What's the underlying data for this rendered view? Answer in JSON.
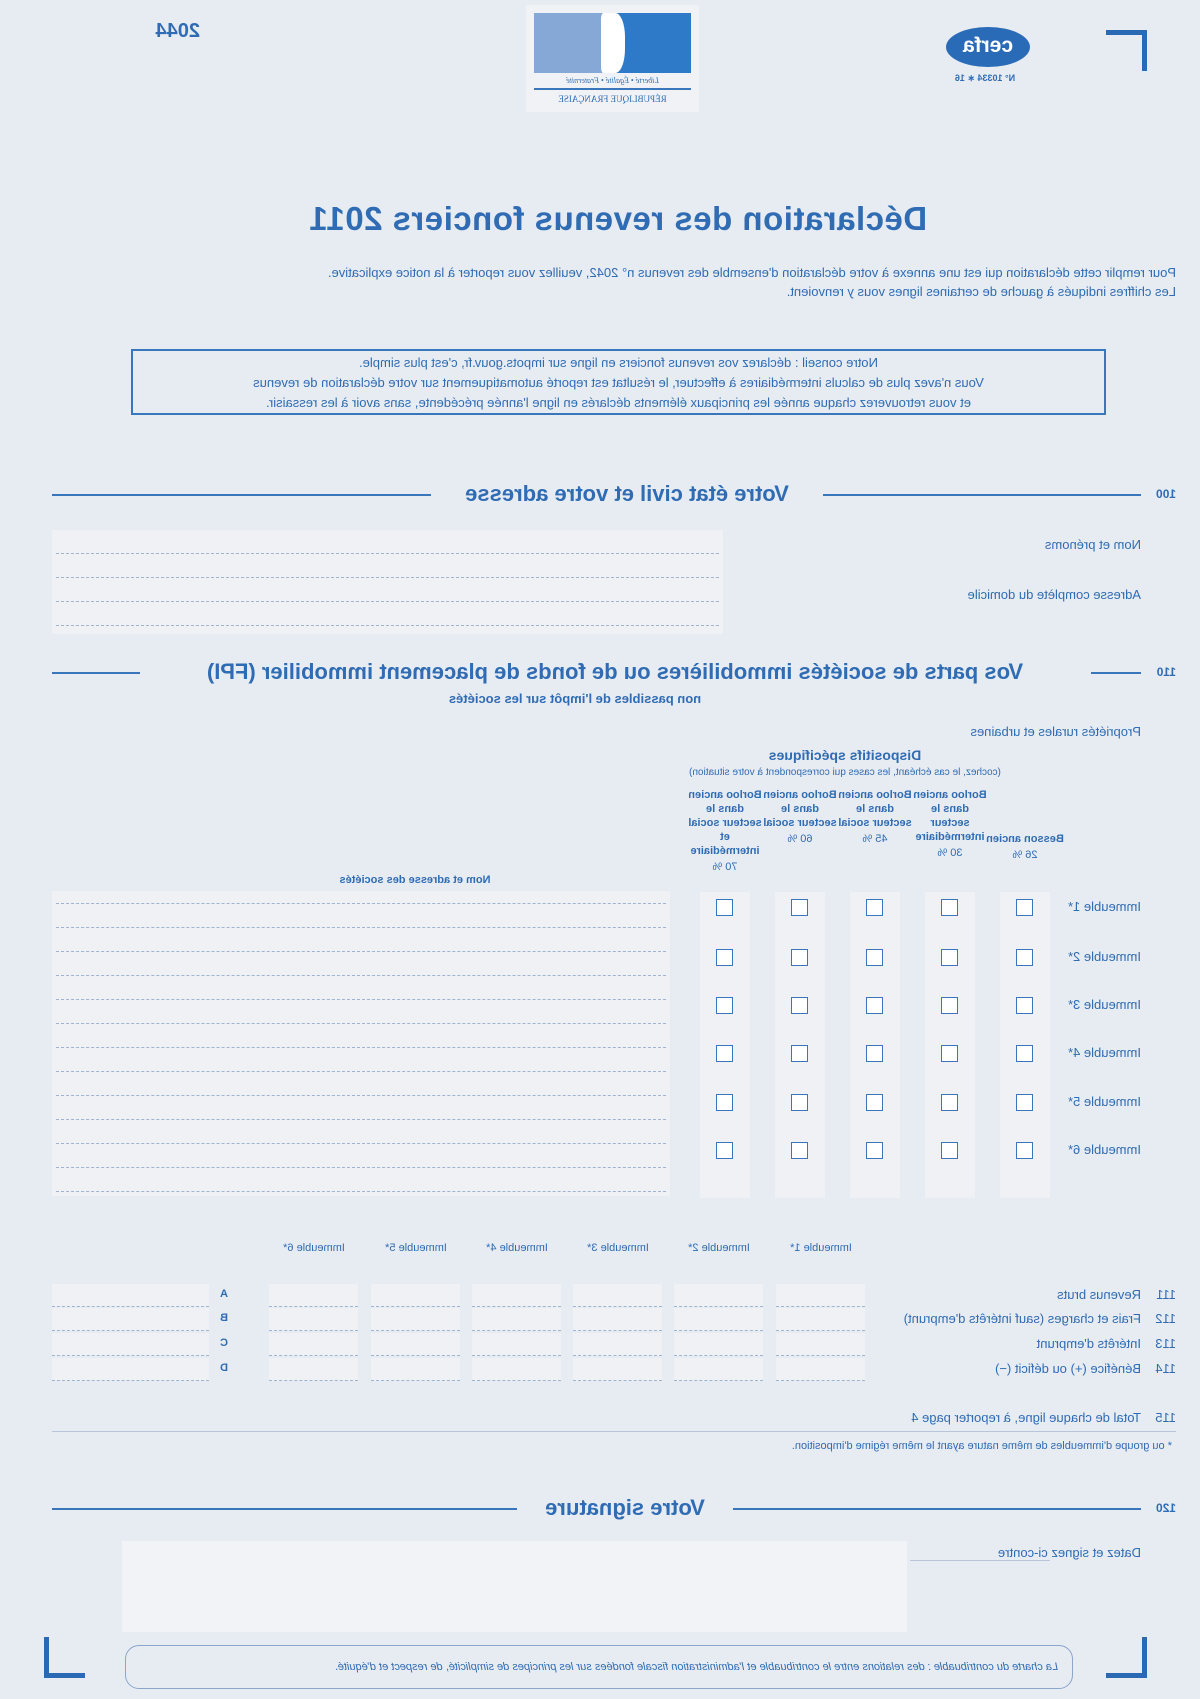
{
  "header": {
    "form_number": "2044",
    "logo_motto": "Liberté • Égalité • Fraternité",
    "logo_text": "RÉPUBLIQUE FRANÇAISE",
    "cerfa_logo": "cerfa",
    "cerfa_number": "N° 10334 ∗ 16"
  },
  "title": "Déclaration des revenus fonciers 2011",
  "intro": [
    "Pour remplir cette déclaration qui est une annexe à votre déclaration d'ensemble des revenus n° 2042, veuillez vous reporter à la notice explicative.",
    "Les chiffres indiqués à gauche de certaines lignes vous y renvoient."
  ],
  "advice": [
    "Notre conseil : déclarez vos revenus fonciers en ligne sur impots.gouv.fr, c'est plus simple.",
    "Vous n'avez plus de calculs intermédiaires à effectuer, le résultat est reporté automatiquement sur votre déclaration de revenus",
    "et vous retrouverez chaque année les principaux éléments déclarés en ligne l'année précédente, sans avoir à les ressaisir."
  ],
  "section_100": {
    "number": "100",
    "title": "Votre état civil et votre adresse",
    "labels": [
      "Nom et prénoms",
      "Adresse complète du domicile"
    ]
  },
  "section_110": {
    "number": "110",
    "title": "Vos parts de sociétés immobilières ou de fonds de placement immobilier (FPI)",
    "subtitle": "non passibles de l'impôt sur les sociétés",
    "properties_label": "Propriétés rurales et urbaines",
    "dispositifs_title": "Dispositifs spécifiques",
    "dispositifs_note": "(cochez, le cas échéant, les cases qui correspondent à votre situation)",
    "columns": [
      {
        "label": "Besson ancien",
        "rate": "26 %"
      },
      {
        "label": "Borloo ancien dans le secteur intermédiaire",
        "rate": "30 %"
      },
      {
        "label": "Borloo ancien dans le secteur social",
        "rate": "45 %"
      },
      {
        "label": "Borloo ancien dans le secteur social",
        "rate": "60 %"
      },
      {
        "label": "Borloo ancien dans le secteur social et intermédiaire",
        "rate": "70 %"
      }
    ],
    "name_header": "Nom et adresse des sociétés",
    "buildings": [
      "Immeuble 1*",
      "Immeuble 2*",
      "Immeuble 3*",
      "Immeuble 4*",
      "Immeuble 5*",
      "Immeuble 6*"
    ],
    "rows": [
      {
        "number": "111",
        "label": "Revenus bruts",
        "letter": "A"
      },
      {
        "number": "112",
        "label": "Frais et charges (sauf intérêts d'emprunt)",
        "letter": "B"
      },
      {
        "number": "113",
        "label": "Intérêts d'emprunt",
        "letter": "C"
      },
      {
        "number": "114",
        "label": "Bénéfice (+) ou déficit (−)",
        "letter": "D"
      }
    ],
    "total": {
      "number": "115",
      "label": "Total de chaque ligne, à reporter page 4"
    },
    "footnote": "* ou groupe d'immeubles de même nature ayant le même régime d'imposition."
  },
  "section_120": {
    "number": "120",
    "title": "Votre signature",
    "label": "Datez et signez ci-contre"
  },
  "footer": "La charte du contribuable : des relations entre le contribuable et l'administration fiscale fondées sur les principes de simplicité, de respect et d'équité.",
  "colors": {
    "background": "#e7ebf2",
    "accent": "#2f6cb3",
    "field": "#eff1f5"
  }
}
